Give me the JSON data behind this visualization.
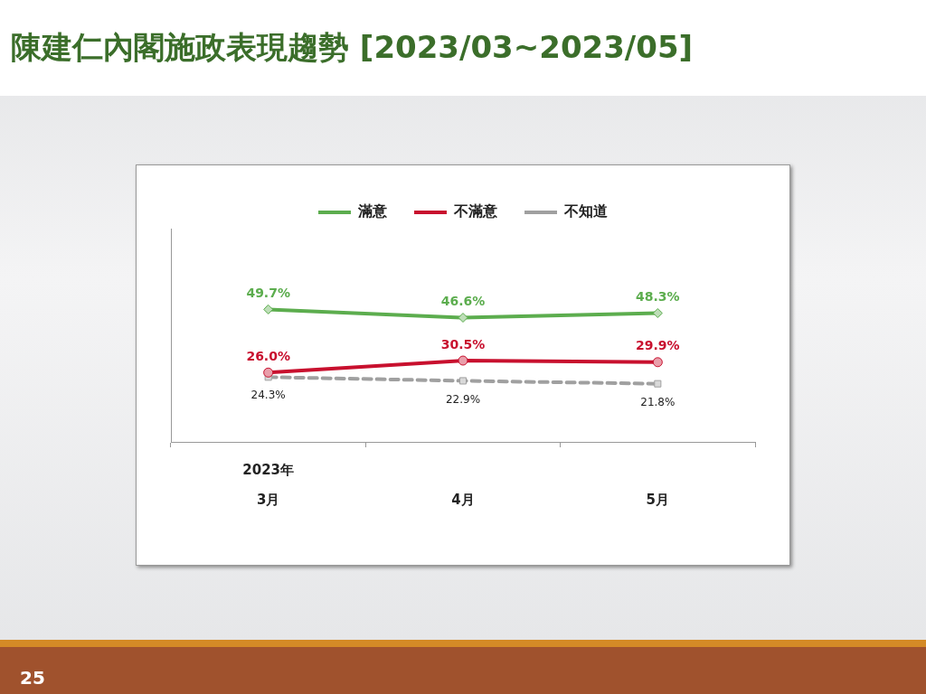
{
  "chart_data": {
    "type": "line",
    "title": "陳建仁內閣施政表現趨勢 [2023/03~2023/05]",
    "categories": [
      "3月",
      "4月",
      "5月"
    ],
    "series": [
      {
        "name": "滿意",
        "color": "#5cad4e",
        "values": [
          49.7,
          46.6,
          48.3
        ],
        "value_labels": [
          "49.7%",
          "46.6%",
          "48.3%"
        ],
        "marker": "diamond",
        "line_style": "solid"
      },
      {
        "name": "不滿意",
        "color": "#c8102e",
        "values": [
          26.0,
          30.5,
          29.9
        ],
        "value_labels": [
          "26.0%",
          "30.5%",
          "29.9%"
        ],
        "marker": "circle",
        "line_style": "solid"
      },
      {
        "name": "不知道",
        "color": "#a0a0a0",
        "values": [
          24.3,
          22.9,
          21.8
        ],
        "value_labels": [
          "24.3%",
          "22.9%",
          "21.8%"
        ],
        "marker": "square",
        "line_style": "dashed"
      }
    ],
    "tick_labels": "x",
    "legend": "top",
    "annotations": [
      "2023年",
      "25"
    ]
  }
}
